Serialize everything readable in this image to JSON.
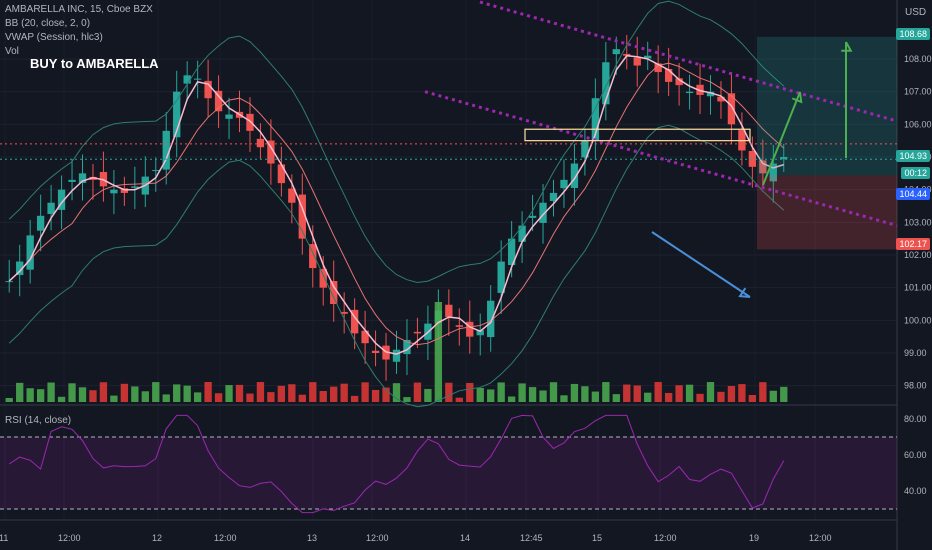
{
  "header": {
    "symbol": "AMBARELLA INC, 15, Cboe BZX",
    "bb": "BB (20, close, 2, 0)",
    "vwap": "VWAP (Session, hlc3)",
    "vol": "Vol",
    "annotation": "BUY to AMBARELLA",
    "rsi": "RSI (14, close)",
    "currency": "USD"
  },
  "price_badges": {
    "target": "108.68",
    "last": "104.93",
    "countdown": "00:12",
    "entry": "104.44",
    "stop": "102.17"
  },
  "colors": {
    "bg": "#131722",
    "up": "#26a69a",
    "down": "#ef5350",
    "vol_up": "#4caf50",
    "vol_down": "#e53935",
    "channel": "#9c27b0",
    "rsi_line": "#9c27b0",
    "vwap": "#f8bbd0",
    "bb_basis": "#e57373",
    "bb_band": "#2e7d6f",
    "target_zone": "#26a69a",
    "stop_zone": "#ef5350",
    "arrow_green": "#4caf50",
    "arrow_blue": "#4a90d9"
  },
  "chart_data": {
    "type": "candlestick",
    "interval": "15",
    "ylim": [
      97.5,
      109.5
    ],
    "y_ticks": [
      98,
      99,
      100,
      101,
      102,
      103,
      104,
      105,
      106,
      107,
      108
    ],
    "x_ticks": [
      "11",
      "12:00",
      "12",
      "12:00",
      "13",
      "12:00",
      "14",
      "12:45",
      "15",
      "12:00",
      "19",
      "12:00"
    ],
    "close_path": [
      101.2,
      101.8,
      102.6,
      103.2,
      103.6,
      104.0,
      104.3,
      104.5,
      104.3,
      104.1,
      104.0,
      103.9,
      104.1,
      104.4,
      104.6,
      105.8,
      107.0,
      107.5,
      107.4,
      106.8,
      106.4,
      106.3,
      106.2,
      105.8,
      105.3,
      104.8,
      104.2,
      103.6,
      102.5,
      101.6,
      101.0,
      100.5,
      100.2,
      99.6,
      99.3,
      99.0,
      98.8,
      99.1,
      99.4,
      99.6,
      99.9,
      100.3,
      100.1,
      99.8,
      99.5,
      99.7,
      100.6,
      101.8,
      102.5,
      102.9,
      103.2,
      103.6,
      103.9,
      104.3,
      104.8,
      105.5,
      106.8,
      107.9,
      108.3,
      108.1,
      107.8,
      108.1,
      107.6,
      107.3,
      107.2,
      107.0,
      106.9,
      107.0,
      106.7,
      106.0,
      105.2,
      104.7,
      104.5,
      104.8,
      105.0
    ],
    "volume_spike_index": 41,
    "trade_setup": {
      "target": 108.68,
      "entry": 104.44,
      "stop": 102.17,
      "last": 104.93
    },
    "rsi": {
      "levels": [
        40,
        60,
        80
      ],
      "overbought": 70,
      "oversold": 30,
      "ylim": [
        25,
        85
      ]
    }
  }
}
